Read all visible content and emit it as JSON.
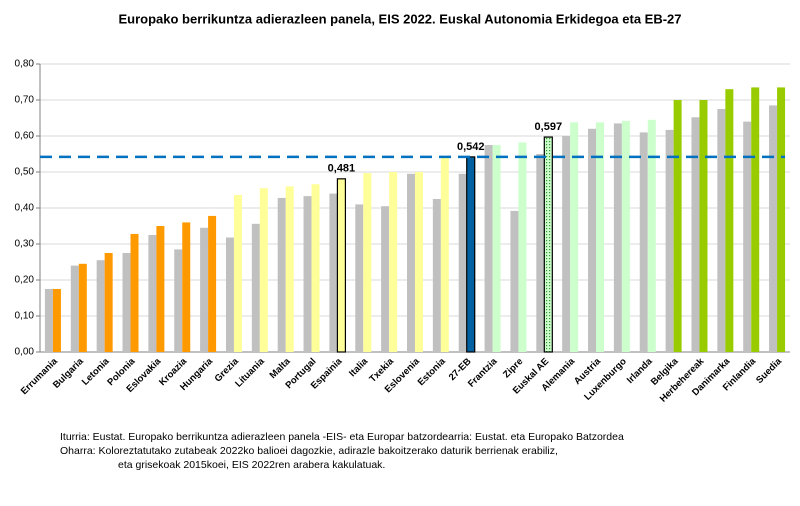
{
  "chart_data": {
    "type": "bar",
    "title": "Europako berrikuntza adierazleen panela, EIS 2022. Euskal Autonomia Erkidegoa eta EB-27",
    "categories": [
      "Errumania",
      "Bulgaria",
      "Letonia",
      "Polonia",
      "Eslovakia",
      "Kroazia",
      "Hungaria",
      "Grezia",
      "Lituania",
      "Malta",
      "Portugal",
      "Espainia",
      "Italia",
      "Txekia",
      "Eslovenia",
      "Estonia",
      "27-EB",
      "Frantzia",
      "Zipre",
      "Euskal AE",
      "Alemania",
      "Austria",
      "Luxenburgo",
      "Irlanda",
      "Belgika",
      "Herbehereak",
      "Danimarka",
      "Finlandia",
      "Suedia"
    ],
    "series": [
      {
        "color": "#c0c0c0",
        "values": [
          0.175,
          0.24,
          0.255,
          0.275,
          0.325,
          0.285,
          0.345,
          0.318,
          0.356,
          0.428,
          0.433,
          0.44,
          0.41,
          0.405,
          0.495,
          0.425,
          0.495,
          0.575,
          0.392,
          0.55,
          0.6,
          0.62,
          0.635,
          0.61,
          0.617,
          0.652,
          0.675,
          0.64,
          0.685
        ]
      },
      {
        "colors": [
          "#ff9900",
          "#ff9900",
          "#ff9900",
          "#ff9900",
          "#ff9900",
          "#ff9900",
          "#ff9900",
          "#ffff99",
          "#ffff99",
          "#ffff99",
          "#ffff99",
          "#ffff99",
          "#ffff99",
          "#ffff99",
          "#ffff99",
          "#ffff99",
          "#0060a0",
          "#ccffcc",
          "#ccffcc",
          "#ccffcc",
          "#ccffcc",
          "#ccffcc",
          "#ccffcc",
          "#ccffcc",
          "#99cc00",
          "#99cc00",
          "#99cc00",
          "#99cc00",
          "#99cc00"
        ],
        "values": [
          0.175,
          0.245,
          0.275,
          0.328,
          0.35,
          0.36,
          0.378,
          0.436,
          0.455,
          0.46,
          0.466,
          0.481,
          0.497,
          0.5,
          0.5,
          0.54,
          0.542,
          0.575,
          0.582,
          0.597,
          0.638,
          0.638,
          0.642,
          0.645,
          0.7,
          0.7,
          0.73,
          0.735,
          0.735
        ],
        "value_labels": [
          null,
          null,
          null,
          null,
          null,
          null,
          null,
          null,
          null,
          null,
          null,
          "0,481",
          null,
          null,
          null,
          null,
          "0,542",
          null,
          null,
          "0,597",
          null,
          null,
          null,
          null,
          null,
          null,
          null,
          null,
          null
        ]
      }
    ],
    "outlined_categories": [
      "Espainia",
      "27-EB",
      "Euskal AE"
    ],
    "dotted_categories": [
      "Euskal AE"
    ],
    "reference_line": {
      "value": 0.542,
      "color": "#0070c0"
    },
    "ylim": [
      0,
      0.8
    ],
    "yticks": [
      {
        "value": 0,
        "label": "0,00"
      },
      {
        "value": 0.1,
        "label": "0,10"
      },
      {
        "value": 0.2,
        "label": "0,20"
      },
      {
        "value": 0.3,
        "label": "0,30"
      },
      {
        "value": 0.4,
        "label": "0,40"
      },
      {
        "value": 0.5,
        "label": "0,50"
      },
      {
        "value": 0.6,
        "label": "0,60"
      },
      {
        "value": 0.7,
        "label": "0,70"
      },
      {
        "value": 0.8,
        "label": "0,80"
      }
    ],
    "grid": true,
    "notes": [
      "Iturria: Eustat. Europako berrikuntza adierazleen panela -EIS- eta Europar batzordearria: Eustat. eta Europako Batzordea",
      "Oharra: Koloreztatutako zutabeak 2022ko balioei dagozkie, adirazle bakoitzerako daturik berrienak erabiliz,",
      "eta grisekoak 2015koei, EIS 2022ren arabera kakulatuak."
    ]
  }
}
